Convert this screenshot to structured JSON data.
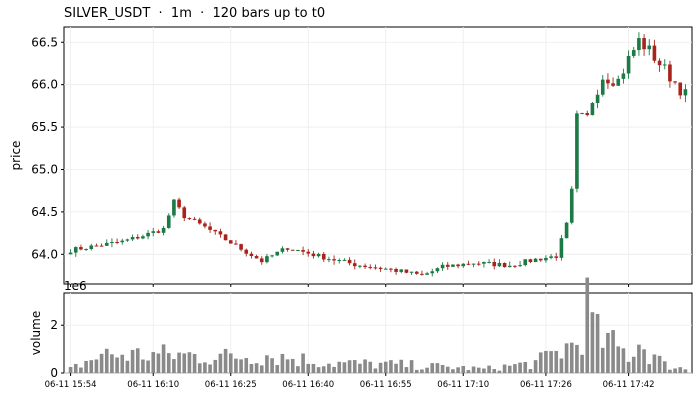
{
  "chart_data": {
    "type": "candlestick",
    "title": "SILVER_USDT  ·  1m  ·  120 bars up to t0",
    "price_panel": {
      "ylabel": "price",
      "ylim": [
        63.65,
        66.68
      ],
      "yticks": [
        "64.0",
        "64.5",
        "65.0",
        "65.5",
        "66.0",
        "66.5"
      ],
      "grid": true
    },
    "volume_panel": {
      "ylabel": "volume",
      "scale_label": "1e6",
      "ylim": [
        0,
        3.35
      ],
      "yticks": [
        "0",
        "2"
      ],
      "grid": true
    },
    "x_tick_labels": [
      "06-11 15:54",
      "06-11 16:10",
      "06-11 16:25",
      "06-11 16:40",
      "06-11 16:55",
      "06-11 17:10",
      "06-11 17:26",
      "06-11 17:42"
    ],
    "x_tick_bar_index": [
      0,
      16,
      31,
      46,
      61,
      76,
      92,
      108
    ],
    "colors": {
      "up": "#1b7a45",
      "down": "#a8231c",
      "volume": "#8a8a8a",
      "grid": "#ececec"
    },
    "bar_count": 120,
    "ohlc_keypoints": [
      [
        0,
        64.05
      ],
      [
        10,
        64.15
      ],
      [
        14,
        64.22
      ],
      [
        18,
        64.3
      ],
      [
        20,
        64.62
      ],
      [
        22,
        64.45
      ],
      [
        26,
        64.32
      ],
      [
        32,
        64.1
      ],
      [
        37,
        63.92
      ],
      [
        42,
        64.08
      ],
      [
        48,
        63.98
      ],
      [
        55,
        63.88
      ],
      [
        62,
        63.82
      ],
      [
        68,
        63.75
      ],
      [
        72,
        63.85
      ],
      [
        78,
        63.9
      ],
      [
        85,
        63.87
      ],
      [
        90,
        63.94
      ],
      [
        94,
        63.98
      ],
      [
        96,
        64.35
      ],
      [
        97,
        64.75
      ],
      [
        98,
        65.6
      ],
      [
        100,
        65.6
      ],
      [
        101,
        65.82
      ],
      [
        103,
        66.1
      ],
      [
        106,
        66.05
      ],
      [
        108,
        66.3
      ],
      [
        110,
        66.52
      ],
      [
        112,
        66.4
      ],
      [
        116,
        66.1
      ],
      [
        119,
        65.88
      ]
    ],
    "volume_keypoints": [
      [
        0,
        0.2
      ],
      [
        6,
        0.9
      ],
      [
        20,
        0.9
      ],
      [
        30,
        0.8
      ],
      [
        38,
        0.9
      ],
      [
        50,
        0.5
      ],
      [
        65,
        0.4
      ],
      [
        80,
        0.2
      ],
      [
        90,
        0.5
      ],
      [
        98,
        1.5
      ],
      [
        100,
        3.2
      ],
      [
        102,
        1.8
      ],
      [
        108,
        0.9
      ],
      [
        110,
        1.5
      ],
      [
        115,
        0.4
      ],
      [
        119,
        0.2
      ]
    ]
  }
}
